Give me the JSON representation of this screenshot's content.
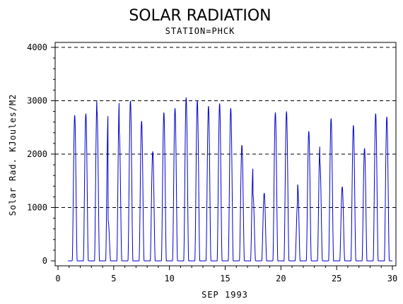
{
  "chart_data": {
    "type": "line",
    "title": "SOLAR RADIATION",
    "subtitle": "STATION=PHCK",
    "xlabel": "SEP 1993",
    "ylabel": "Solar Rad. KJoules/M2",
    "xlim": [
      0,
      30
    ],
    "ylim": [
      0,
      4000
    ],
    "x_ticks": [
      "0",
      "5",
      "10",
      "15",
      "20",
      "25",
      "30"
    ],
    "y_ticks": [
      "0",
      "1000",
      "2000",
      "3000",
      "4000"
    ],
    "grid": "horizontal dashed at 1000, 2000, 3000, 4000",
    "line_color": "#0000cc",
    "series": [
      {
        "values_description_daily_peaks": [
          [
            1,
            2730
          ],
          [
            2,
            2760
          ],
          [
            3,
            3050
          ],
          [
            3,
            2800
          ],
          [
            4,
            2750
          ],
          [
            4,
            750
          ],
          [
            5,
            3000
          ],
          [
            5,
            2400
          ],
          [
            6,
            3000
          ],
          [
            7,
            2620
          ],
          [
            8,
            2050
          ],
          [
            9,
            2780
          ],
          [
            10,
            2860
          ],
          [
            11,
            3060
          ],
          [
            12,
            3000
          ],
          [
            13,
            2900
          ],
          [
            14,
            2950
          ],
          [
            15,
            2860
          ],
          [
            16,
            2170
          ],
          [
            17,
            1750
          ],
          [
            17,
            1230
          ],
          [
            18,
            1270
          ],
          [
            19,
            2780
          ],
          [
            20,
            2800
          ],
          [
            21,
            1100
          ],
          [
            21,
            1430
          ],
          [
            22,
            2430
          ],
          [
            23,
            2170
          ],
          [
            23,
            1850
          ],
          [
            24,
            2670
          ],
          [
            25,
            1390
          ],
          [
            26,
            2540
          ],
          [
            27,
            2110
          ],
          [
            28,
            2760
          ],
          [
            29,
            2700
          ]
        ]
      }
    ]
  }
}
